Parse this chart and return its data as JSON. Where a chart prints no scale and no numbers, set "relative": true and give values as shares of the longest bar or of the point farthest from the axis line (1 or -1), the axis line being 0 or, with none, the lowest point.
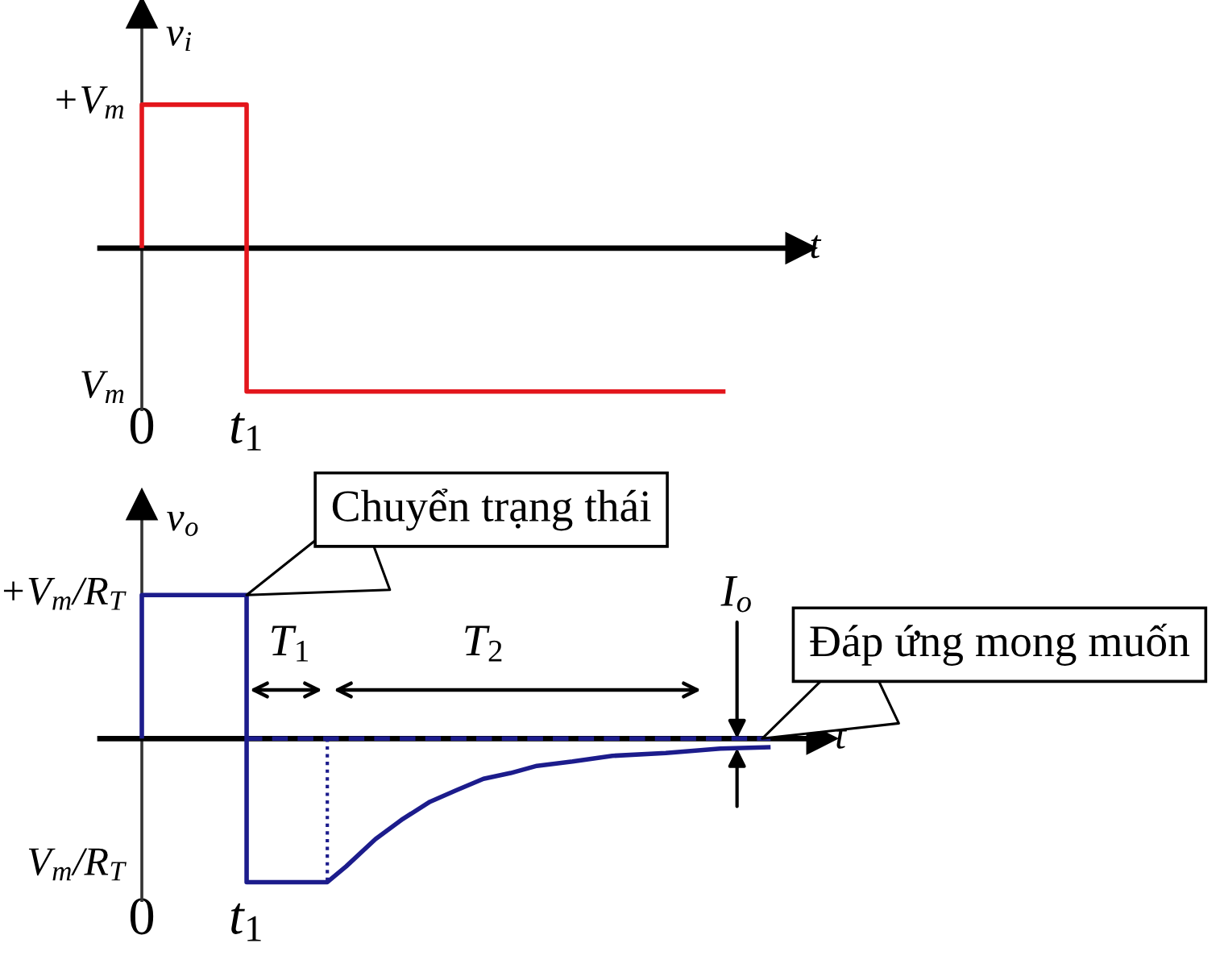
{
  "chart_data": [
    {
      "type": "line",
      "relative": true,
      "xlabel": "t",
      "ylabel": "v$_{i}$",
      "xlim": [
        -0.4,
        6.29
      ],
      "xticks": [
        0,
        {
          "value": 1,
          "label": "t$_{1}$"
        }
      ],
      "tick_labels": "x",
      "series": [
        {
          "color": "#e3161c",
          "line_style": "solid",
          "x": [
            0,
            0,
            1,
            1,
            5.57
          ],
          "values": [
            0,
            1,
            1,
            -1,
            -1
          ]
        }
      ],
      "annotations": [
        "+V$_{m}$",
        "V$_{m}$"
      ]
    },
    {
      "type": "line",
      "relative": true,
      "xlabel": "t",
      "ylabel": "v$_{o}$",
      "xlim": [
        -0.4,
        6.49
      ],
      "xticks": [
        0,
        {
          "value": 1,
          "label": "t$_{1}$"
        }
      ],
      "tick_labels": "x",
      "series": [
        {
          "color": "#1c1c8c",
          "line_style": "solid",
          "x": [
            0,
            0,
            1,
            1,
            1.77,
            1.95,
            2.23,
            2.49,
            2.75,
            3.0,
            3.26,
            3.52,
            3.77,
            4.11,
            4.49,
            5.0,
            5.52,
            6.0
          ],
          "values": [
            0,
            1,
            1,
            -1,
            -1,
            -0.89,
            -0.7,
            -0.56,
            -0.44,
            -0.36,
            -0.28,
            -0.24,
            -0.19,
            -0.16,
            -0.12,
            -0.1,
            -0.07,
            -0.06
          ]
        },
        {
          "color": "#1c1c8c",
          "line_style": "dashed",
          "x": [
            1,
            6.0
          ],
          "values": [
            0,
            0
          ]
        },
        {
          "color": "#1c1c8c",
          "line_style": "dotted",
          "x": [
            1.77,
            1.77
          ],
          "values": [
            0,
            -1
          ]
        }
      ],
      "annotations": [
        "+V$_{m}$/R$_{T}$",
        "V$_{m}$/R$_{T}$",
        "T$_{1}$",
        "T$_{2}$",
        {
          "text": "Chuyển trạng thái",
          "x": 1,
          "y": 1
        },
        {
          "text": "I$_{o}$",
          "x": 5.68,
          "y": 0
        },
        {
          "text": "Đáp ứng mong muốn",
          "x": 5.92,
          "y": 0
        }
      ]
    }
  ]
}
